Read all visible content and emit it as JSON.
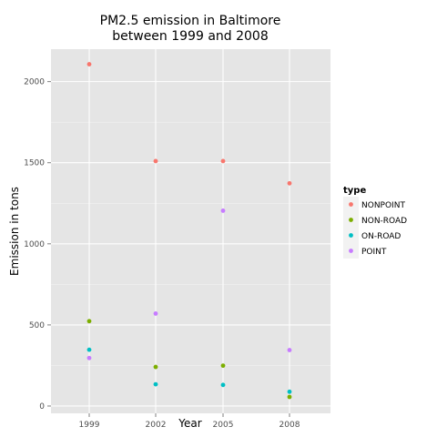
{
  "chart_data": {
    "type": "scatter",
    "title": [
      "PM2.5 emission in Baltimore",
      "between 1999 and 2008"
    ],
    "xlabel": "Year",
    "ylabel": "Emission in tons",
    "x": [
      "1999",
      "2002",
      "2005",
      "2008"
    ],
    "ylim": [
      -45,
      2200
    ],
    "yticks": [
      0,
      500,
      1000,
      1500,
      2000
    ],
    "grid": true,
    "legend": {
      "title": "type",
      "position": "right"
    },
    "series": [
      {
        "name": "NONPOINT",
        "color": "#F8766D",
        "values": [
          2107,
          1510,
          1510,
          1373
        ]
      },
      {
        "name": "NON-ROAD",
        "color": "#7CAE00",
        "values": [
          523,
          241,
          249,
          56
        ]
      },
      {
        "name": "ON-ROAD",
        "color": "#00BFC4",
        "values": [
          347,
          134,
          130,
          88
        ]
      },
      {
        "name": "POINT",
        "color": "#C77CFF",
        "values": [
          296,
          570,
          1204,
          345
        ]
      }
    ]
  }
}
